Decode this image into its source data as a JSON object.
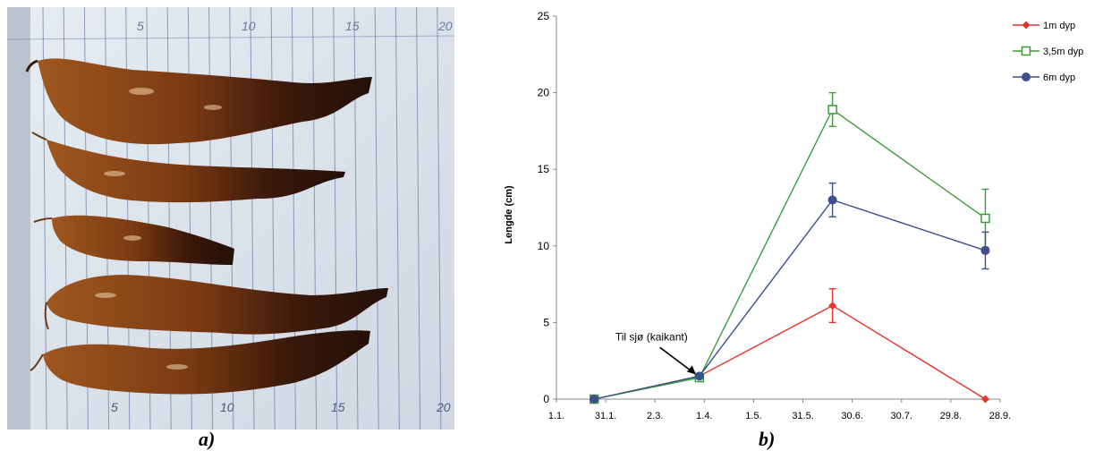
{
  "panels": {
    "a_label": "a)",
    "b_label": "b)"
  },
  "photo": {
    "ruler_labels": [
      "5",
      "10",
      "15",
      "20"
    ],
    "colors": {
      "paper": "#dfe6ee",
      "grid_line": "#4a5a90",
      "kelp_light": "#9a4f1a",
      "kelp_dark": "#2b1208"
    }
  },
  "chart_data": {
    "type": "line",
    "title": "",
    "xlabel": "",
    "ylabel": "Lengde (cm)",
    "ylim": [
      0,
      25
    ],
    "yticks": [
      0,
      5,
      10,
      15,
      20,
      25
    ],
    "xticks": [
      "1.1.",
      "31.1.",
      "2.3.",
      "1.4.",
      "1.5.",
      "31.5.",
      "30.6.",
      "30.7.",
      "29.8.",
      "28.9."
    ],
    "xlim": [
      "1.1.",
      "28.9."
    ],
    "x": [
      "24.1.",
      "29.3.",
      "18.6.",
      "19.9."
    ],
    "series": [
      {
        "name": "1m dyp",
        "color": "#e8322a",
        "marker": "diamond",
        "values": [
          0,
          1.5,
          6.1,
          0
        ],
        "err": [
          0,
          0,
          1.1,
          0
        ]
      },
      {
        "name": "3,5m dyp",
        "color": "#3a9e3a",
        "marker": "square-open",
        "values": [
          0,
          1.4,
          18.9,
          11.8
        ],
        "err": [
          0,
          0,
          1.1,
          1.9
        ]
      },
      {
        "name": "6m dyp",
        "color": "#3c4f8f",
        "marker": "circle",
        "values": [
          0,
          1.5,
          13.0,
          9.7
        ],
        "err": [
          0,
          0,
          1.1,
          1.2
        ]
      }
    ],
    "annotations": [
      {
        "text": "Til sjø (kaikant)",
        "x": "29.3.",
        "y": 1.5
      }
    ],
    "legend": "top-right",
    "grid": false
  }
}
